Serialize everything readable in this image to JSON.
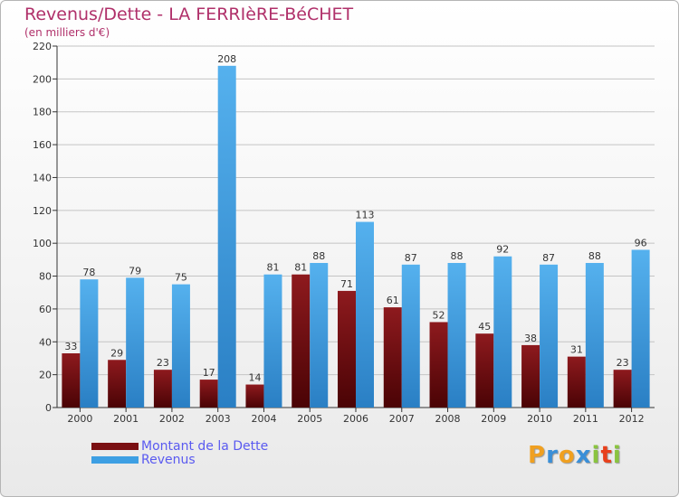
{
  "chart_data": {
    "type": "bar",
    "title": "Revenus/Dette - LA FERRIèRE-BéCHET",
    "subtitle": "(en milliers d'€)",
    "categories": [
      "2000",
      "2001",
      "2002",
      "2003",
      "2004",
      "2005",
      "2006",
      "2007",
      "2008",
      "2009",
      "2010",
      "2011",
      "2012"
    ],
    "series": [
      {
        "name": "Montant de la Dette",
        "color": "#7a0f12",
        "values": [
          33,
          29,
          23,
          17,
          14,
          81,
          71,
          61,
          52,
          45,
          38,
          31,
          23
        ]
      },
      {
        "name": "Revenus",
        "color": "#3d9fe3",
        "values": [
          78,
          79,
          75,
          208,
          81,
          88,
          113,
          87,
          88,
          92,
          87,
          88,
          96
        ]
      }
    ],
    "ylim": [
      0,
      220
    ],
    "yticks": [
      0,
      20,
      40,
      60,
      80,
      100,
      120,
      140,
      160,
      180,
      200,
      220
    ],
    "grid": true,
    "legend_position": "bottom-left"
  },
  "logo": {
    "letters": [
      "P",
      "r",
      "o",
      "x",
      "i",
      "t",
      "i"
    ],
    "colors": [
      "#f0a020",
      "#3a8fd8",
      "#f0a020",
      "#3a8fd8",
      "#8ac43f",
      "#e8401c",
      "#8ac43f"
    ]
  }
}
